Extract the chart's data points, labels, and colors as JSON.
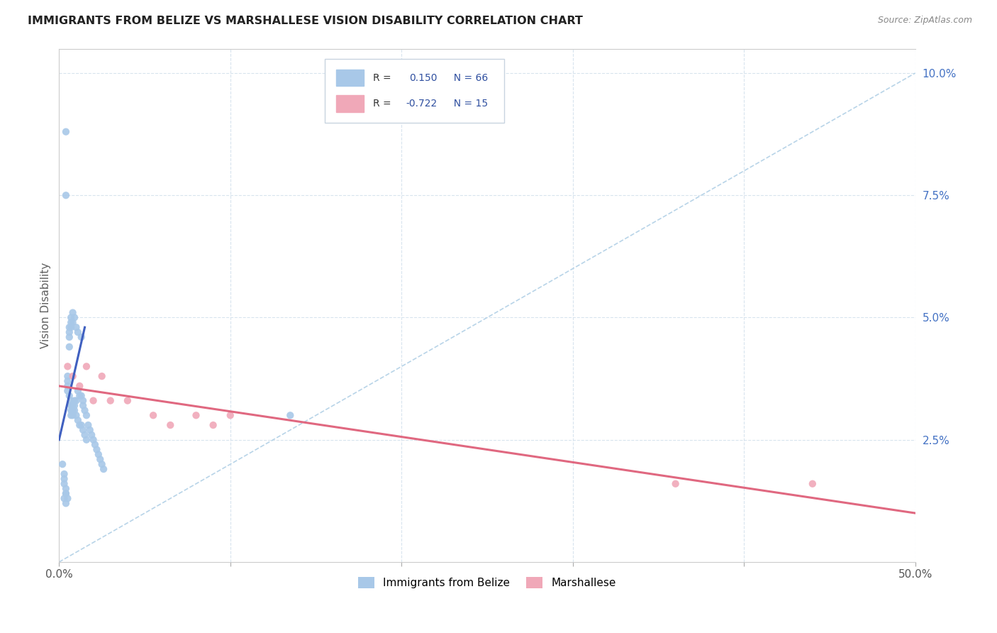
{
  "title": "IMMIGRANTS FROM BELIZE VS MARSHALLESE VISION DISABILITY CORRELATION CHART",
  "source_text": "Source: ZipAtlas.com",
  "ylabel": "Vision Disability",
  "xlabel": "",
  "xlim": [
    0,
    0.5
  ],
  "ylim": [
    0,
    0.105
  ],
  "R_belize": 0.15,
  "N_belize": 66,
  "R_marsh": -0.722,
  "N_marsh": 15,
  "color_belize": "#a8c8e8",
  "color_marsh": "#f0a8b8",
  "color_belize_line": "#4060c0",
  "color_marsh_line": "#e06880",
  "color_diag_line": "#b8d4e8",
  "background_color": "#ffffff",
  "grid_color": "#d8e4ee",
  "title_color": "#222222",
  "source_color": "#888888",
  "legend_R_color": "#3050a0",
  "belize_x": [
    0.004,
    0.004,
    0.002,
    0.003,
    0.003,
    0.003,
    0.004,
    0.004,
    0.004,
    0.005,
    0.005,
    0.005,
    0.005,
    0.005,
    0.006,
    0.006,
    0.006,
    0.006,
    0.006,
    0.007,
    0.007,
    0.007,
    0.007,
    0.007,
    0.007,
    0.007,
    0.008,
    0.008,
    0.008,
    0.008,
    0.008,
    0.009,
    0.009,
    0.009,
    0.009,
    0.01,
    0.01,
    0.01,
    0.011,
    0.011,
    0.011,
    0.012,
    0.012,
    0.013,
    0.013,
    0.013,
    0.014,
    0.014,
    0.014,
    0.015,
    0.015,
    0.016,
    0.016,
    0.017,
    0.018,
    0.019,
    0.02,
    0.021,
    0.022,
    0.023,
    0.024,
    0.025,
    0.026,
    0.135,
    0.003,
    0.004
  ],
  "belize_y": [
    0.088,
    0.075,
    0.02,
    0.018,
    0.017,
    0.016,
    0.015,
    0.014,
    0.014,
    0.013,
    0.038,
    0.037,
    0.036,
    0.035,
    0.048,
    0.047,
    0.046,
    0.044,
    0.034,
    0.05,
    0.049,
    0.048,
    0.033,
    0.032,
    0.031,
    0.03,
    0.051,
    0.049,
    0.032,
    0.031,
    0.03,
    0.05,
    0.033,
    0.032,
    0.031,
    0.048,
    0.033,
    0.03,
    0.047,
    0.035,
    0.029,
    0.034,
    0.028,
    0.046,
    0.034,
    0.028,
    0.033,
    0.032,
    0.027,
    0.031,
    0.026,
    0.03,
    0.025,
    0.028,
    0.027,
    0.026,
    0.025,
    0.024,
    0.023,
    0.022,
    0.021,
    0.02,
    0.019,
    0.03,
    0.013,
    0.012
  ],
  "marsh_x": [
    0.005,
    0.008,
    0.012,
    0.016,
    0.02,
    0.025,
    0.03,
    0.04,
    0.055,
    0.065,
    0.08,
    0.09,
    0.1,
    0.36,
    0.44
  ],
  "marsh_y": [
    0.04,
    0.038,
    0.036,
    0.04,
    0.033,
    0.038,
    0.033,
    0.033,
    0.03,
    0.028,
    0.03,
    0.028,
    0.03,
    0.016,
    0.016
  ],
  "belize_line_x": [
    0.0,
    0.015
  ],
  "belize_line_y": [
    0.025,
    0.048
  ],
  "marsh_line_x": [
    0.0,
    0.5
  ],
  "marsh_line_y": [
    0.036,
    0.01
  ],
  "diag_line_x": [
    0.0,
    0.5
  ],
  "diag_line_y": [
    0.0,
    0.1
  ]
}
